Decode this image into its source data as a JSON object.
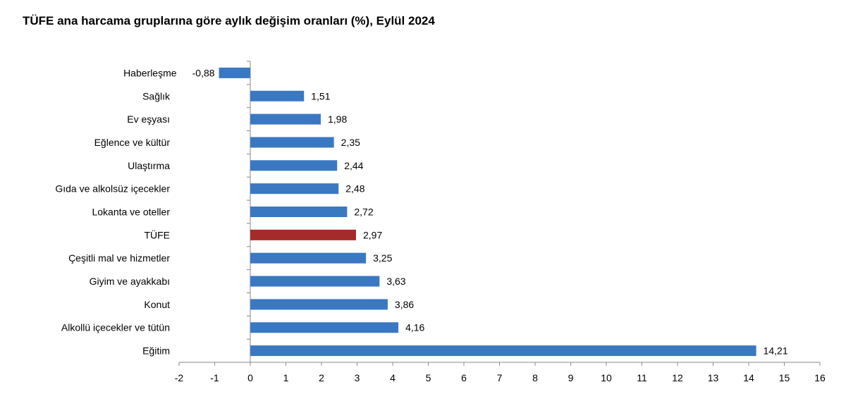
{
  "chart_data": {
    "type": "bar",
    "orientation": "horizontal",
    "title": "TÜFE ana harcama gruplarına göre aylık değişim oranları (%), Eylül 2024",
    "categories": [
      "Haberleşme",
      "Sağlık",
      "Ev eşyası",
      "Eğlence ve kültür",
      "Ulaştırma",
      "Gıda ve alkolsüz içecekler",
      "Lokanta ve oteller",
      "TÜFE",
      "Çeşitli mal ve hizmetler",
      "Giyim ve ayakkabı",
      "Konut",
      "Alkollü içecekler ve tütün",
      "Eğitim"
    ],
    "values": [
      -0.88,
      1.51,
      1.98,
      2.35,
      2.44,
      2.48,
      2.72,
      2.97,
      3.25,
      3.63,
      3.86,
      4.16,
      14.21
    ],
    "data_labels": [
      "-0,88",
      "1,51",
      "1,98",
      "2,35",
      "2,44",
      "2,48",
      "2,72",
      "2,97",
      "3,25",
      "3,63",
      "3,86",
      "4,16",
      "14,21"
    ],
    "xlim": [
      -2,
      16
    ],
    "xticks": [
      "-2",
      "-1",
      "0",
      "1",
      "2",
      "3",
      "4",
      "5",
      "6",
      "7",
      "8",
      "9",
      "10",
      "11",
      "12",
      "13",
      "14",
      "15",
      "16"
    ],
    "grid": false,
    "colors": {
      "default": "#3b78c2",
      "highlight": "#a52a2a",
      "highlight_category": "TÜFE"
    }
  }
}
